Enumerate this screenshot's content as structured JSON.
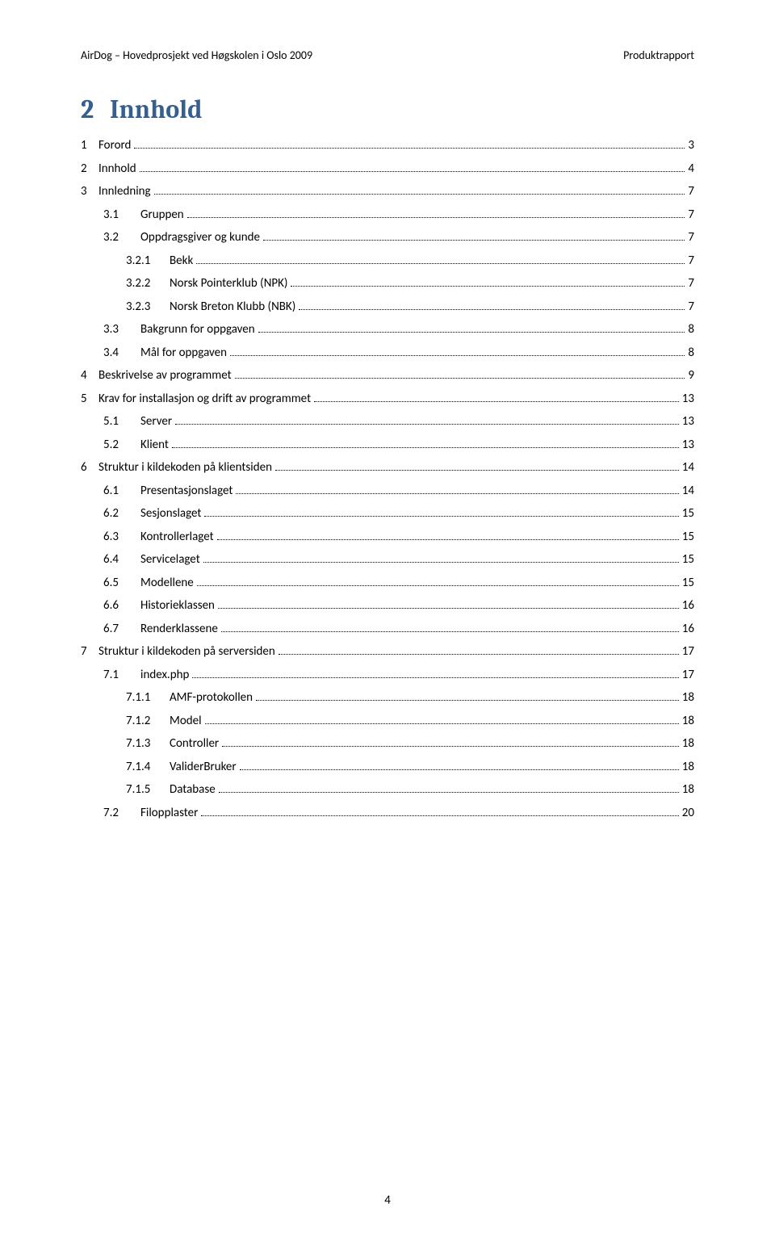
{
  "header": {
    "left": "AirDog – Hovedprosjekt ved Høgskolen i Oslo 2009",
    "right": "Produktrapport"
  },
  "section": {
    "number": "2",
    "title": "Innhold"
  },
  "toc": [
    {
      "indent": 0,
      "num": "1",
      "label": "Forord",
      "page": "3"
    },
    {
      "indent": 0,
      "num": "2",
      "label": "Innhold",
      "page": "4"
    },
    {
      "indent": 0,
      "num": "3",
      "label": "Innledning",
      "page": "7"
    },
    {
      "indent": 1,
      "num": "3.1",
      "label": "Gruppen",
      "page": "7"
    },
    {
      "indent": 1,
      "num": "3.2",
      "label": "Oppdragsgiver og kunde",
      "page": "7"
    },
    {
      "indent": 2,
      "num": "3.2.1",
      "label": "Bekk",
      "page": "7"
    },
    {
      "indent": 2,
      "num": "3.2.2",
      "label": "Norsk Pointerklub (NPK)",
      "page": "7"
    },
    {
      "indent": 2,
      "num": "3.2.3",
      "label": "Norsk Breton Klubb (NBK)",
      "page": "7"
    },
    {
      "indent": 1,
      "num": "3.3",
      "label": "Bakgrunn for oppgaven",
      "page": "8"
    },
    {
      "indent": 1,
      "num": "3.4",
      "label": "Mål for oppgaven",
      "page": "8"
    },
    {
      "indent": 0,
      "num": "4",
      "label": "Beskrivelse av programmet",
      "page": "9"
    },
    {
      "indent": 0,
      "num": "5",
      "label": "Krav for installasjon og drift av programmet",
      "page": "13"
    },
    {
      "indent": 1,
      "num": "5.1",
      "label": "Server",
      "page": "13"
    },
    {
      "indent": 1,
      "num": "5.2",
      "label": "Klient",
      "page": "13"
    },
    {
      "indent": 0,
      "num": "6",
      "label": "Struktur i kildekoden på klientsiden",
      "page": "14"
    },
    {
      "indent": 1,
      "num": "6.1",
      "label": "Presentasjonslaget",
      "page": "14"
    },
    {
      "indent": 1,
      "num": "6.2",
      "label": "Sesjonslaget",
      "page": "15"
    },
    {
      "indent": 1,
      "num": "6.3",
      "label": "Kontrollerlaget",
      "page": "15"
    },
    {
      "indent": 1,
      "num": "6.4",
      "label": "Servicelaget",
      "page": "15"
    },
    {
      "indent": 1,
      "num": "6.5",
      "label": "Modellene",
      "page": "15"
    },
    {
      "indent": 1,
      "num": "6.6",
      "label": "Historieklassen",
      "page": "16"
    },
    {
      "indent": 1,
      "num": "6.7",
      "label": "Renderklassene",
      "page": "16"
    },
    {
      "indent": 0,
      "num": "7",
      "label": "Struktur i kildekoden på serversiden",
      "page": "17"
    },
    {
      "indent": 1,
      "num": "7.1",
      "label": "index.php",
      "page": "17"
    },
    {
      "indent": 2,
      "num": "7.1.1",
      "label": "AMF-protokollen",
      "page": "18"
    },
    {
      "indent": 2,
      "num": "7.1.2",
      "label": "Model",
      "page": "18"
    },
    {
      "indent": 2,
      "num": "7.1.3",
      "label": "Controller",
      "page": "18"
    },
    {
      "indent": 2,
      "num": "7.1.4",
      "label": "ValiderBruker",
      "page": "18"
    },
    {
      "indent": 2,
      "num": "7.1.5",
      "label": "Database",
      "page": "18"
    },
    {
      "indent": 1,
      "num": "7.2",
      "label": "Filopplaster",
      "page": "20"
    }
  ],
  "pageNumber": "4",
  "colors": {
    "heading": "#365f91",
    "text": "#000000",
    "background": "#ffffff"
  }
}
